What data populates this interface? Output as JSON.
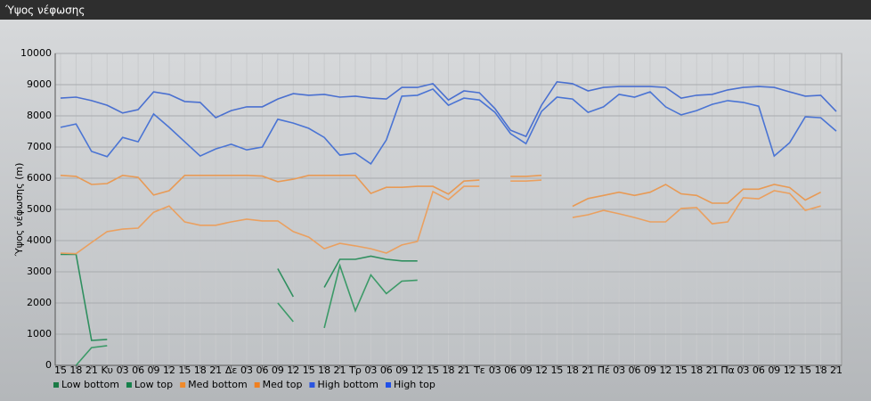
{
  "chart_data": {
    "type": "line",
    "title": "Ύψος νέφωσης",
    "y_label": "Ύψος νέφωσης (m)",
    "categories": [
      "15",
      "18",
      "21",
      "Κυ",
      "03",
      "06",
      "09",
      "12",
      "15",
      "18",
      "21",
      "Δε",
      "03",
      "06",
      "09",
      "12",
      "15",
      "18",
      "21",
      "Τρ",
      "03",
      "06",
      "09",
      "12",
      "15",
      "18",
      "21",
      "Τε",
      "03",
      "06",
      "09",
      "12",
      "15",
      "18",
      "21",
      "Πέ",
      "03",
      "06",
      "09",
      "12",
      "15",
      "18",
      "21",
      "Πα",
      "03",
      "06",
      "09",
      "12",
      "15",
      "18",
      "21"
    ],
    "ylim": [
      0,
      10000
    ],
    "yticks": [
      0,
      1000,
      2000,
      3000,
      4000,
      5000,
      6000,
      7000,
      8000,
      9000,
      10000
    ],
    "grid": true,
    "legend": "bottom",
    "series": [
      {
        "name": "Low bottom",
        "color": "#3c9a68",
        "legend_color": "#1a7a45",
        "values": [
          null,
          0,
          570,
          630,
          null,
          null,
          null,
          null,
          null,
          null,
          null,
          null,
          null,
          null,
          2000,
          1400,
          null,
          1200,
          3200,
          1750,
          2900,
          2300,
          2700,
          2730,
          null,
          null,
          null,
          null,
          null,
          null,
          null,
          null,
          null,
          null,
          null,
          null,
          null,
          null,
          null,
          null,
          null,
          null,
          null,
          null,
          null,
          null,
          null,
          null,
          null,
          null,
          null
        ]
      },
      {
        "name": "Low top",
        "color": "#2f8f5f",
        "legend_color": "#15804a",
        "values": [
          3560,
          3560,
          800,
          830,
          null,
          null,
          null,
          null,
          null,
          null,
          null,
          null,
          null,
          null,
          3100,
          2200,
          null,
          2500,
          3400,
          3400,
          3500,
          3400,
          3350,
          3350,
          null,
          null,
          null,
          null,
          null,
          null,
          null,
          null,
          null,
          null,
          null,
          null,
          null,
          null,
          null,
          null,
          null,
          null,
          null,
          null,
          null,
          null,
          null,
          null,
          null,
          null,
          null
        ]
      },
      {
        "name": "Med bottom",
        "color": "#eaa060",
        "legend_color": "#f08a2a",
        "values": [
          3600,
          3580,
          3940,
          4290,
          4370,
          4400,
          4910,
          5110,
          4600,
          4490,
          4490,
          4600,
          4690,
          4630,
          4630,
          4290,
          4110,
          3740,
          3910,
          3830,
          3740,
          3600,
          3860,
          3970,
          5570,
          5310,
          5740,
          5740,
          null,
          5910,
          5910,
          5940,
          null,
          4740,
          4830,
          4970,
          4860,
          4740,
          4600,
          4600,
          5030,
          5060,
          4540,
          4600,
          5370,
          5340,
          5600,
          5510,
          4970,
          5110,
          null
        ]
      },
      {
        "name": "Med top",
        "color": "#e89a55",
        "legend_color": "#f08020",
        "values": [
          6090,
          6060,
          5800,
          5830,
          6090,
          6030,
          5460,
          5600,
          6090,
          6090,
          6090,
          6090,
          6090,
          6070,
          5890,
          5970,
          6090,
          6090,
          6090,
          6090,
          5510,
          5710,
          5710,
          5740,
          5740,
          5490,
          5910,
          5940,
          null,
          6060,
          6060,
          6090,
          null,
          5100,
          5350,
          5450,
          5550,
          5450,
          5550,
          5800,
          5500,
          5450,
          5200,
          5200,
          5650,
          5650,
          5800,
          5700,
          5300,
          5550,
          null
        ]
      },
      {
        "name": "High bottom",
        "color": "#4a74d4",
        "legend_color": "#2a55e0",
        "values": [
          7630,
          7740,
          6860,
          6690,
          7310,
          7170,
          8060,
          7630,
          7170,
          6710,
          6940,
          7090,
          6910,
          7000,
          7890,
          7770,
          7600,
          7310,
          6740,
          6800,
          6460,
          7230,
          8630,
          8660,
          8860,
          8340,
          8570,
          8510,
          8110,
          7430,
          7110,
          8140,
          8600,
          8540,
          8110,
          8290,
          8690,
          8600,
          8770,
          8290,
          8030,
          8170,
          8370,
          8490,
          8430,
          8310,
          6710,
          7140,
          7970,
          7940,
          7510
        ]
      },
      {
        "name": "High top",
        "color": "#4a70d0",
        "legend_color": "#2050e8",
        "values": [
          8570,
          8600,
          8490,
          8340,
          8090,
          8200,
          8770,
          8690,
          8460,
          8430,
          7940,
          8170,
          8290,
          8290,
          8540,
          8710,
          8660,
          8690,
          8600,
          8630,
          8570,
          8540,
          8910,
          8910,
          9030,
          8510,
          8800,
          8740,
          8230,
          7540,
          7340,
          8340,
          9090,
          9030,
          8800,
          8910,
          8940,
          8940,
          8940,
          8910,
          8570,
          8660,
          8690,
          8830,
          8910,
          8940,
          8910,
          8770,
          8630,
          8660,
          8140
        ]
      }
    ]
  }
}
